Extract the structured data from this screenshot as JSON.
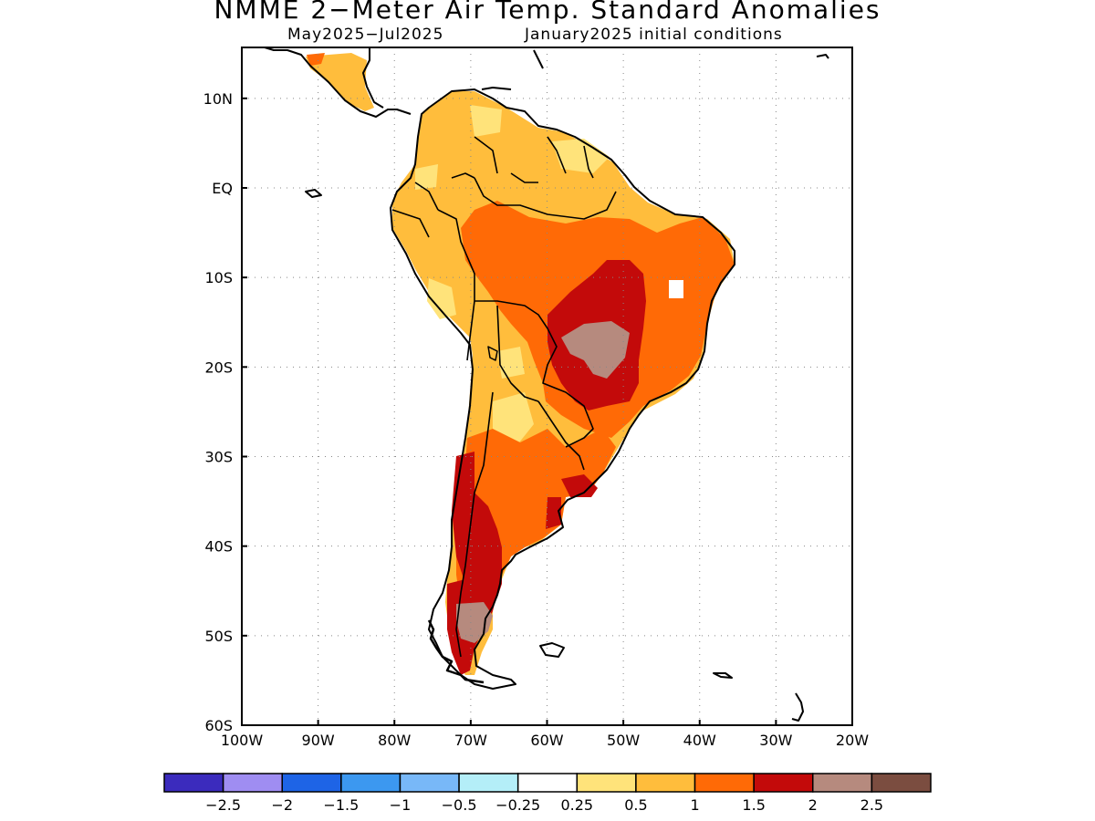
{
  "title": "NMME 2−Meter Air Temp. Standard Anomalies",
  "subtitle_left": "May2025−Jul2025",
  "subtitle_right": "January2025 initial conditions",
  "map": {
    "lon_range": [
      -100,
      -20
    ],
    "lat_range": [
      -60,
      15
    ],
    "lon_ticks": [
      {
        "value": -100,
        "label": "100W"
      },
      {
        "value": -90,
        "label": "90W"
      },
      {
        "value": -80,
        "label": "80W"
      },
      {
        "value": -70,
        "label": "70W"
      },
      {
        "value": -60,
        "label": "60W"
      },
      {
        "value": -50,
        "label": "50W"
      },
      {
        "value": -40,
        "label": "40W"
      },
      {
        "value": -30,
        "label": "30W"
      },
      {
        "value": -20,
        "label": "20W"
      }
    ],
    "lat_ticks": [
      {
        "value": 10,
        "label": "10N"
      },
      {
        "value": 0,
        "label": "EQ"
      },
      {
        "value": -10,
        "label": "10S"
      },
      {
        "value": -20,
        "label": "20S"
      },
      {
        "value": -30,
        "label": "30S"
      },
      {
        "value": -40,
        "label": "40S"
      },
      {
        "value": -50,
        "label": "50S"
      },
      {
        "value": -60,
        "label": "60S"
      }
    ],
    "grid": true
  },
  "colorbar": {
    "labels": [
      "−2.5",
      "−2",
      "−1.5",
      "−1",
      "−0.5",
      "−0.25",
      "0.25",
      "0.5",
      "1",
      "1.5",
      "2",
      "2.5"
    ],
    "colors": [
      "#3b2bbd",
      "#9f8df2",
      "#1e64e6",
      "#3c98f0",
      "#78b8f8",
      "#b4eef8",
      "#ffffff",
      "#ffe37a",
      "#ffbd3c",
      "#ff6a06",
      "#c30a0a",
      "#b68a7e",
      "#7b4d40"
    ]
  }
}
